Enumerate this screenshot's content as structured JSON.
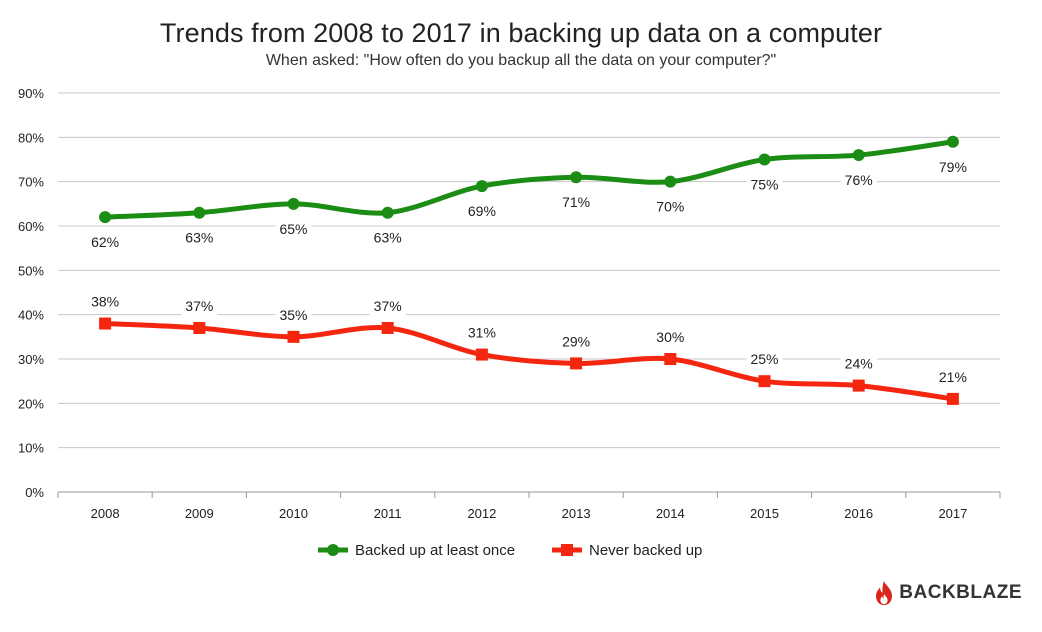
{
  "chart_data": {
    "type": "line",
    "title": "Trends from 2008 to 2017 in backing up data on a computer",
    "subtitle": "When asked: \"How often do you backup all the data on your computer?\"",
    "categories": [
      "2008",
      "2009",
      "2010",
      "2011",
      "2012",
      "2013",
      "2014",
      "2015",
      "2016",
      "2017"
    ],
    "y_ticks": [
      "0%",
      "10%",
      "20%",
      "30%",
      "40%",
      "50%",
      "60%",
      "70%",
      "80%",
      "90%"
    ],
    "ylim": [
      0,
      90
    ],
    "grid": true,
    "legend_position": "bottom-center",
    "series": [
      {
        "name": "Backed up at least once",
        "values": [
          62,
          63,
          65,
          63,
          69,
          71,
          70,
          75,
          76,
          79
        ],
        "labels": [
          "62%",
          "63%",
          "65%",
          "63%",
          "69%",
          "71%",
          "70%",
          "75%",
          "76%",
          "79%"
        ],
        "color": "#1b8c14",
        "marker": "circle"
      },
      {
        "name": "Never backed up",
        "values": [
          38,
          37,
          35,
          37,
          31,
          29,
          30,
          25,
          24,
          21
        ],
        "labels": [
          "38%",
          "37%",
          "35%",
          "37%",
          "31%",
          "29%",
          "30%",
          "25%",
          "24%",
          "21%"
        ],
        "color": "#f5260f",
        "marker": "square"
      }
    ]
  },
  "brand": {
    "name": "BACKBLAZE",
    "icon": "flame-icon",
    "color": "#d9261c"
  }
}
